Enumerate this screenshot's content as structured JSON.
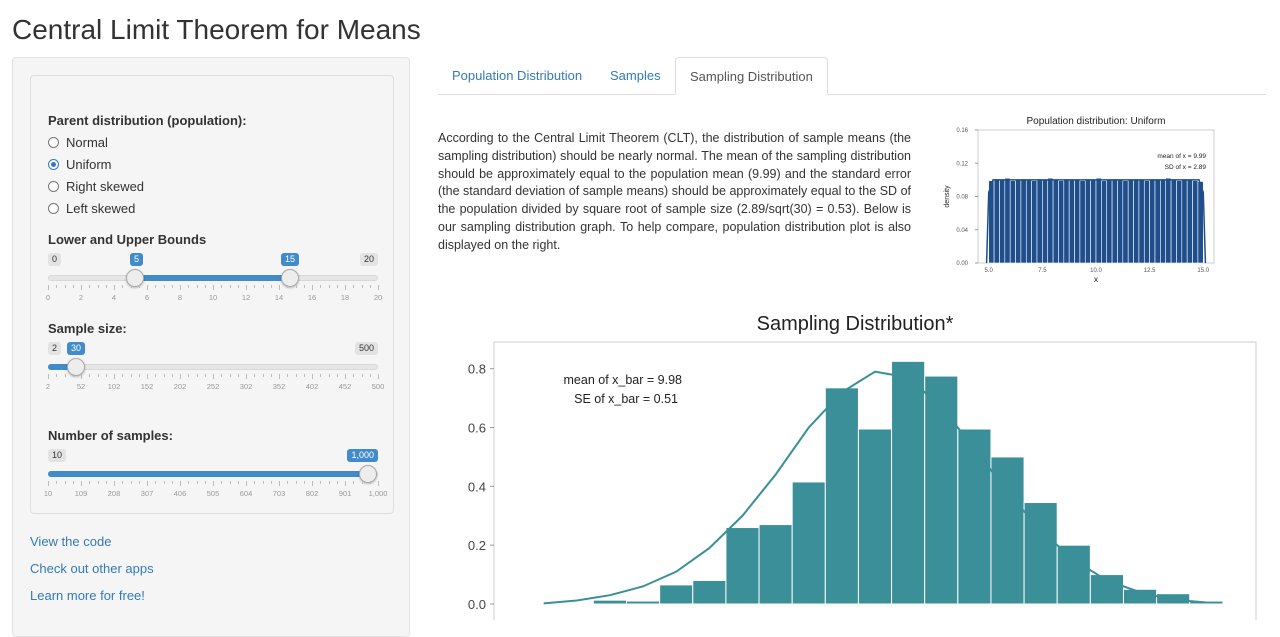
{
  "app": {
    "title": "Central Limit Theorem for Means"
  },
  "sidebar": {
    "parent_label": "Parent distribution (population):",
    "distributions": [
      {
        "label": "Normal",
        "selected": false
      },
      {
        "label": "Uniform",
        "selected": true
      },
      {
        "label": "Right skewed",
        "selected": false
      },
      {
        "label": "Left skewed",
        "selected": false
      }
    ],
    "bounds": {
      "label": "Lower and Upper Bounds",
      "min": 0,
      "max": 20,
      "min_label": "0",
      "max_label": "20",
      "low": 5,
      "high": 15,
      "low_label": "5",
      "high_label": "15",
      "tick_labels": [
        "0",
        "2",
        "4",
        "6",
        "8",
        "10",
        "12",
        "14",
        "16",
        "18",
        "20"
      ]
    },
    "sample_size": {
      "label": "Sample size:",
      "min": 2,
      "max": 500,
      "min_label": "2",
      "max_label": "500",
      "value": 30,
      "value_label": "30",
      "tick_labels": [
        "2",
        "52",
        "102",
        "152",
        "202",
        "252",
        "302",
        "352",
        "402",
        "452",
        "500"
      ]
    },
    "num_samples": {
      "label": "Number of samples:",
      "min": 10,
      "max": 1000,
      "min_label": "10",
      "max_label": "1,000",
      "value": 1000,
      "value_label": "1,000",
      "tick_labels": [
        "10",
        "109",
        "208",
        "307",
        "406",
        "505",
        "604",
        "703",
        "802",
        "901",
        "1,000"
      ]
    },
    "links": [
      "View the code",
      "Check out other apps",
      "Learn more for free!"
    ]
  },
  "tabs": [
    {
      "label": "Population Distribution",
      "active": false
    },
    {
      "label": "Samples",
      "active": false
    },
    {
      "label": "Sampling Distribution",
      "active": true
    }
  ],
  "description": "According to the Central Limit Theorem (CLT), the distribution of sample means (the sampling distribution) should be nearly normal. The mean of the sampling distribution should be approximately equal to the population mean (9.99) and the standard error (the standard deviation of sample means) should be approximately equal to the SD of the population divided by square root of sample size (2.89/sqrt(30) = 0.53). Below is our sampling distribution graph. To help compare, population distribution plot is also displayed on the right.",
  "colors": {
    "accent": "#428bca",
    "link": "#337ab7",
    "pop_bars": "#1f4e8c",
    "samp_bars": "#3a8f99"
  },
  "chart_data": [
    {
      "type": "bar",
      "title": "Population distribution: Uniform",
      "xlabel": "x",
      "ylabel": "density",
      "xlim": [
        4.5,
        15.5
      ],
      "ylim": [
        0,
        0.16
      ],
      "x_ticks": [
        "5.0",
        "7.5",
        "10.0",
        "12.5",
        "15.0"
      ],
      "y_ticks": [
        "0.00",
        "0.04",
        "0.08",
        "0.12",
        "0.16"
      ],
      "annotations": [
        "mean of x = 9.99",
        "SD of x = 2.89"
      ],
      "bin_start": 5.0,
      "bin_width": 0.25,
      "values": [
        0.099,
        0.101,
        0.1,
        0.102,
        0.099,
        0.1,
        0.101,
        0.1,
        0.099,
        0.101,
        0.1,
        0.102,
        0.1,
        0.099,
        0.101,
        0.1,
        0.1,
        0.099,
        0.101,
        0.1,
        0.102,
        0.099,
        0.1,
        0.101,
        0.1,
        0.099,
        0.1,
        0.101,
        0.1,
        0.099,
        0.101,
        0.1,
        0.1,
        0.102,
        0.1,
        0.099,
        0.101,
        0.1,
        0.099,
        0.098
      ]
    },
    {
      "type": "bar",
      "title": "Sampling Distribution*",
      "xlabel": "",
      "ylabel": "",
      "ylim": [
        0,
        0.85
      ],
      "y_ticks": [
        "0.0",
        "0.2",
        "0.4",
        "0.6",
        "0.8"
      ],
      "annotations": [
        "mean of x_bar = 9.98",
        "SE of x_bar = 0.51"
      ],
      "bin_start": 8.0,
      "bin_width": 0.1,
      "values": [
        0.003,
        0.013,
        0.01,
        0.065,
        0.08,
        0.26,
        0.27,
        0.415,
        0.735,
        0.595,
        0.825,
        0.775,
        0.595,
        0.5,
        0.345,
        0.2,
        0.1,
        0.05,
        0.035,
        0.01
      ],
      "density_curve": [
        0.002,
        0.012,
        0.03,
        0.06,
        0.11,
        0.19,
        0.3,
        0.44,
        0.6,
        0.72,
        0.79,
        0.77,
        0.67,
        0.53,
        0.38,
        0.25,
        0.15,
        0.08,
        0.04,
        0.015,
        0.005
      ]
    }
  ]
}
